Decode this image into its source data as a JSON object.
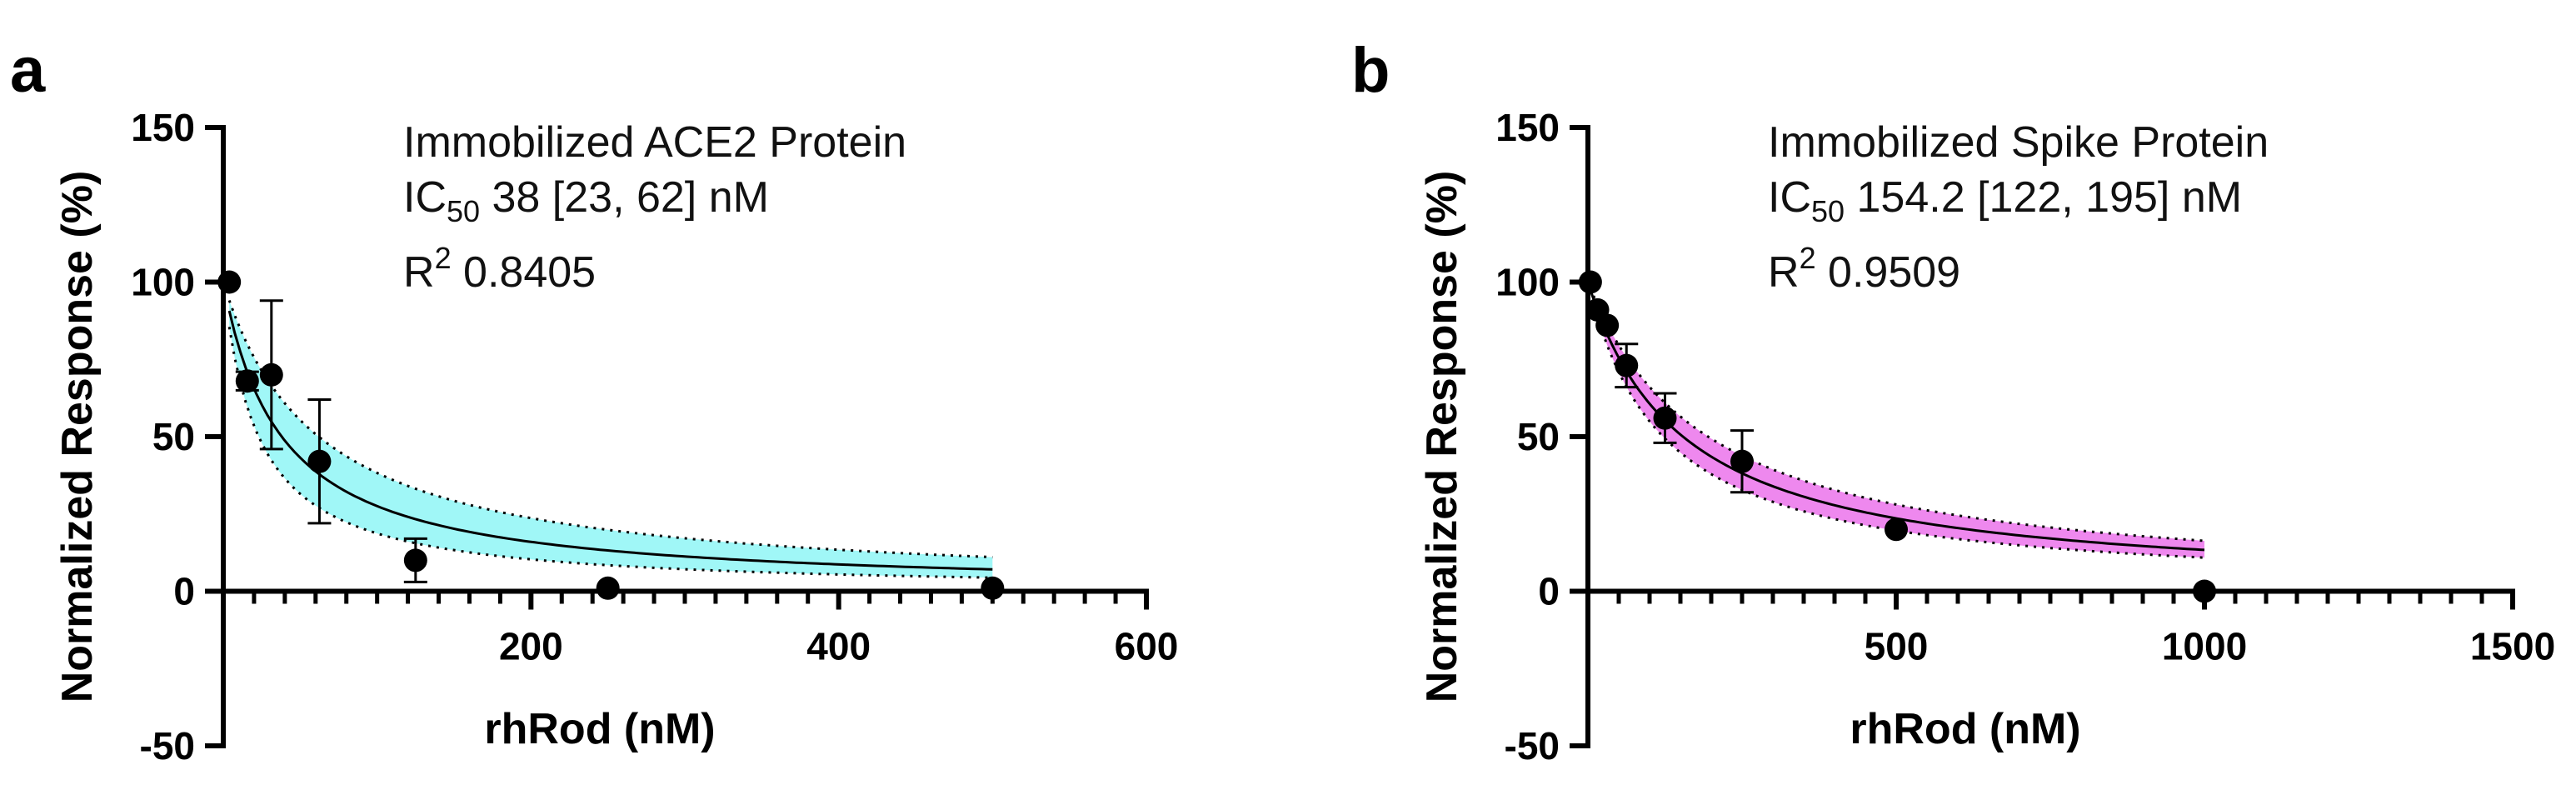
{
  "chart_data": [
    {
      "panel": "a",
      "type": "scatter",
      "title": "Immobilized ACE2 Protein",
      "xlabel": "rhRod (nM)",
      "ylabel": "Normalized Response (%)",
      "xlim": [
        0,
        600
      ],
      "ylim": [
        -50,
        150
      ],
      "xticks": [
        200,
        400,
        600
      ],
      "xtick_labels": [
        "200",
        "400",
        "600"
      ],
      "x_minor_step": 20,
      "yticks": [
        -50,
        0,
        50,
        100,
        150
      ],
      "ytick_labels": [
        "-50",
        "0",
        "50",
        "100",
        "150"
      ],
      "annotations": {
        "ic50_prefix": "IC",
        "ic50_sub": "50",
        "ic50_value": " 38 [23, 62] nM",
        "r2_prefix": "R",
        "r2_sup": "2",
        "r2_value": " 0.8405"
      },
      "points": [
        {
          "x": 3.9,
          "y": 100,
          "err": 0
        },
        {
          "x": 15.6,
          "y": 68,
          "err": 3
        },
        {
          "x": 31.3,
          "y": 70,
          "err": 24
        },
        {
          "x": 62.5,
          "y": 42,
          "err": 20
        },
        {
          "x": 125,
          "y": 10,
          "err": 7
        },
        {
          "x": 250,
          "y": 1,
          "err": 0
        },
        {
          "x": 500,
          "y": 1,
          "err": 0
        }
      ],
      "fit": {
        "ic50": 38,
        "ic50_low": 23,
        "ic50_high": 62,
        "x_start": 3.9,
        "x_end": 500
      },
      "band_color": "#a0f7f7"
    },
    {
      "panel": "b",
      "type": "scatter",
      "title": "Immobilized Spike Protein",
      "xlabel": "rhRod (nM)",
      "ylabel": "Normalized Response (%)",
      "xlim": [
        0,
        1500
      ],
      "ylim": [
        -50,
        150
      ],
      "xticks": [
        500,
        1000,
        1500
      ],
      "xtick_labels": [
        "500",
        "1000",
        "1500"
      ],
      "x_minor_step": 50,
      "yticks": [
        -50,
        0,
        50,
        100,
        150
      ],
      "ytick_labels": [
        "-50",
        "0",
        "50",
        "100",
        "150"
      ],
      "annotations": {
        "ic50_prefix": "IC",
        "ic50_sub": "50",
        "ic50_value": " 154.2 [122, 195] nM",
        "r2_prefix": "R",
        "r2_sup": "2",
        "r2_value": " 0.9509"
      },
      "points": [
        {
          "x": 3.9,
          "y": 100,
          "err": 0
        },
        {
          "x": 15.6,
          "y": 91,
          "err": 0
        },
        {
          "x": 31.3,
          "y": 86,
          "err": 0
        },
        {
          "x": 62.5,
          "y": 73,
          "err": 7
        },
        {
          "x": 125,
          "y": 56,
          "err": 8
        },
        {
          "x": 250,
          "y": 42,
          "err": 10
        },
        {
          "x": 500,
          "y": 20,
          "err": 0
        },
        {
          "x": 1000,
          "y": 0,
          "err": 0
        }
      ],
      "fit": {
        "ic50": 154.2,
        "ic50_low": 122,
        "ic50_high": 195,
        "x_start": 3.9,
        "x_end": 1000
      },
      "band_color": "#ee88ee"
    }
  ]
}
